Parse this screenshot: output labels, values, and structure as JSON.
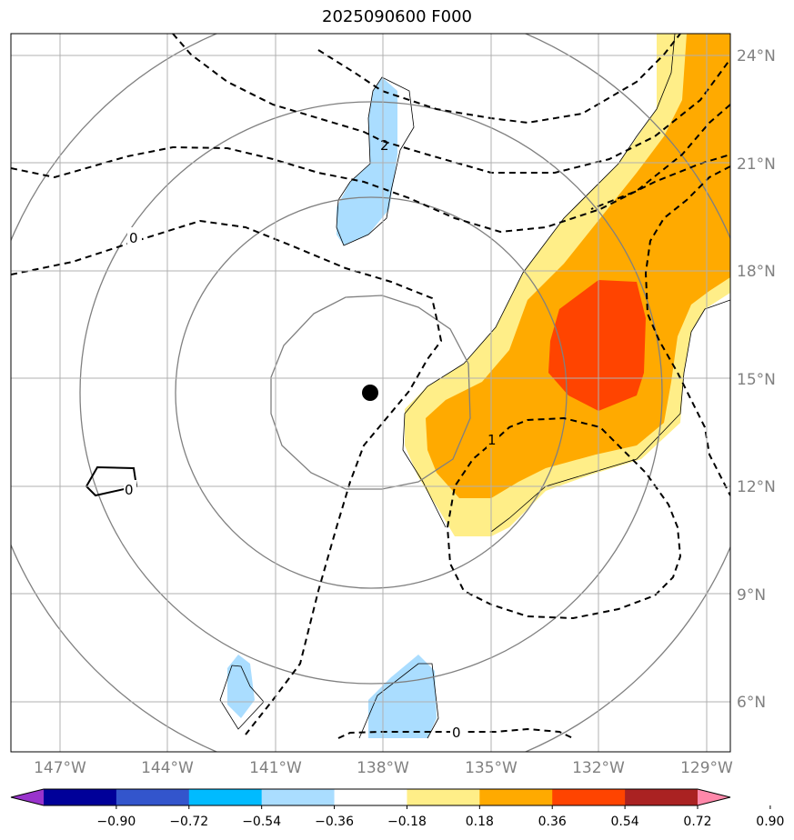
{
  "title": "2025090600 F000",
  "map": {
    "lat_labels": [
      "24°N",
      "21°N",
      "18°N",
      "15°N",
      "12°N",
      "9°N",
      "6°N"
    ],
    "lon_labels": [
      "147°W",
      "144°W",
      "141°W",
      "138°W",
      "135°W",
      "132°W",
      "129°W"
    ],
    "storm_center": {
      "lon": -138.4,
      "lat": 14.6
    },
    "contour_labels": [
      "2",
      "0",
      "1",
      "0",
      "0"
    ]
  },
  "colorbar": {
    "tick_labels": [
      "−0.90",
      "−0.72",
      "−0.54",
      "−0.36",
      "−0.18",
      "0.18",
      "0.36",
      "0.54",
      "0.72",
      "0.90"
    ],
    "colors": [
      "#9933cc",
      "#000099",
      "#3355cc",
      "#00bbff",
      "#aaddff",
      "#ffffff",
      "#ffee88",
      "#ffaa00",
      "#ff4400",
      "#aa2222",
      "#ff88aa"
    ]
  }
}
